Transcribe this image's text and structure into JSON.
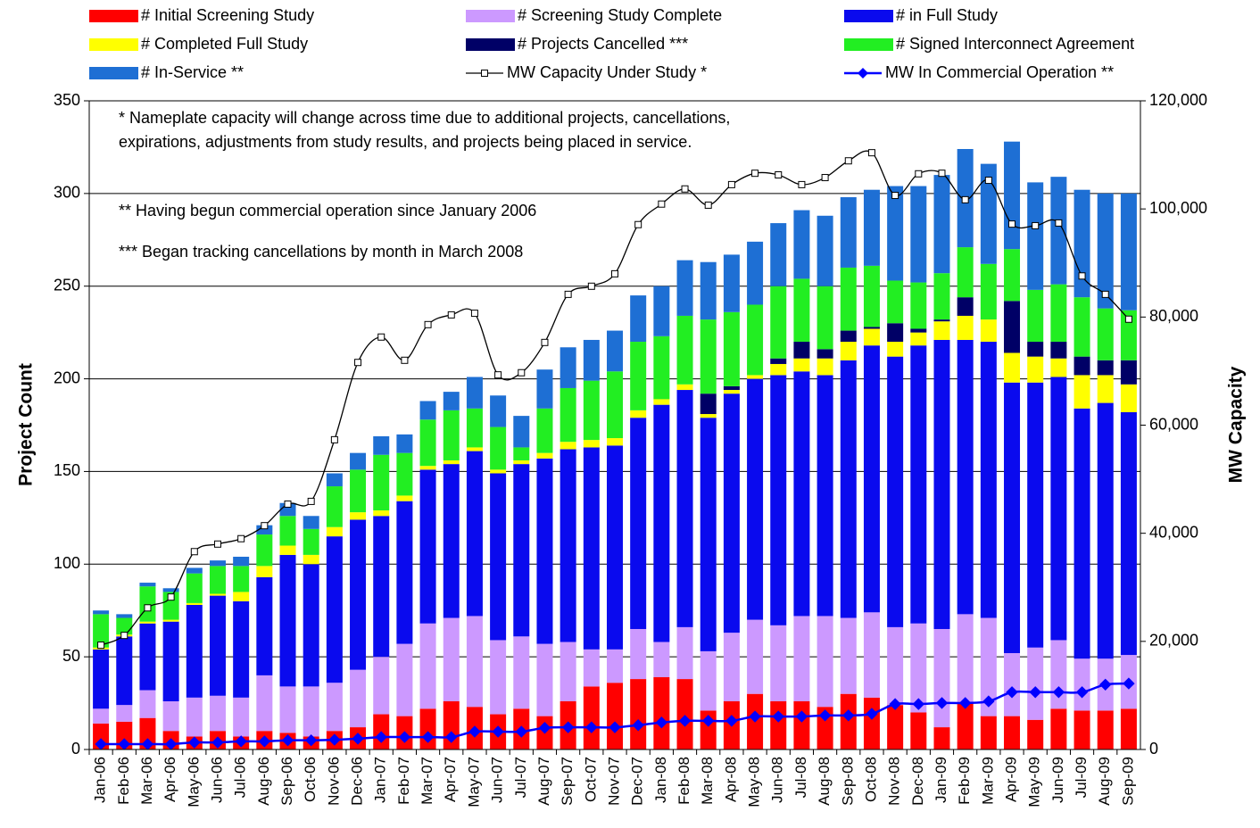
{
  "chart_data": {
    "type": "bar",
    "stacked": true,
    "categories": [
      "Jan-06",
      "Feb-06",
      "Mar-06",
      "Apr-06",
      "May-06",
      "Jun-06",
      "Jul-06",
      "Aug-06",
      "Sep-06",
      "Oct-06",
      "Nov-06",
      "Dec-06",
      "Jan-07",
      "Feb-07",
      "Mar-07",
      "Apr-07",
      "May-07",
      "Jun-07",
      "Jul-07",
      "Aug-07",
      "Sep-07",
      "Oct-07",
      "Nov-07",
      "Dec-07",
      "Jan-08",
      "Feb-08",
      "Mar-08",
      "Apr-08",
      "May-08",
      "Jun-08",
      "Jul-08",
      "Aug-08",
      "Sep-08",
      "Oct-08",
      "Nov-08",
      "Dec-08",
      "Jan-09",
      "Feb-09",
      "Mar-09",
      "Apr-09",
      "May-09",
      "Jun-09",
      "Jul-09",
      "Aug-09",
      "Sep-09"
    ],
    "series": [
      {
        "name": "# Initial Screening Study",
        "color": "#ff0000",
        "values": [
          14,
          15,
          17,
          10,
          7,
          10,
          7,
          10,
          9,
          7,
          10,
          12,
          19,
          18,
          22,
          26,
          23,
          19,
          22,
          18,
          26,
          34,
          36,
          38,
          39,
          38,
          21,
          26,
          30,
          26,
          26,
          23,
          30,
          28,
          24,
          20,
          12,
          25,
          18,
          18,
          16,
          22,
          21,
          21,
          22
        ]
      },
      {
        "name": "# Screening Study Complete",
        "color": "#cc99ff",
        "values": [
          8,
          9,
          15,
          16,
          21,
          19,
          21,
          30,
          25,
          27,
          26,
          31,
          31,
          39,
          46,
          45,
          49,
          40,
          39,
          39,
          32,
          20,
          18,
          27,
          19,
          28,
          32,
          37,
          40,
          41,
          46,
          49,
          41,
          46,
          42,
          48,
          53,
          48,
          53,
          34,
          39,
          37,
          28,
          28,
          29
        ]
      },
      {
        "name": "# in Full Study",
        "color": "#0a0aee",
        "values": [
          32,
          37,
          36,
          43,
          50,
          54,
          52,
          53,
          71,
          66,
          79,
          81,
          76,
          77,
          83,
          83,
          89,
          90,
          93,
          100,
          104,
          109,
          110,
          114,
          128,
          128,
          126,
          129,
          130,
          135,
          132,
          130,
          139,
          144,
          146,
          150,
          156,
          148,
          149,
          146,
          143,
          142,
          135,
          138,
          131
        ]
      },
      {
        "name": "# Completed Full Study",
        "color": "#ffff00",
        "values": [
          1,
          1,
          1,
          1,
          1,
          1,
          5,
          6,
          5,
          5,
          5,
          4,
          3,
          3,
          2,
          2,
          2,
          2,
          2,
          3,
          4,
          4,
          4,
          4,
          3,
          3,
          2,
          2,
          2,
          6,
          7,
          9,
          10,
          9,
          8,
          7,
          10,
          13,
          12,
          16,
          14,
          10,
          18,
          15,
          15
        ]
      },
      {
        "name": "# Projects Cancelled ***",
        "color": "#000066",
        "values": [
          0,
          0,
          0,
          0,
          0,
          0,
          0,
          0,
          0,
          0,
          0,
          0,
          0,
          0,
          0,
          0,
          0,
          0,
          0,
          0,
          0,
          0,
          0,
          0,
          0,
          0,
          11,
          2,
          0,
          3,
          9,
          5,
          6,
          1,
          10,
          2,
          1,
          10,
          0,
          28,
          8,
          9,
          10,
          8,
          13
        ]
      },
      {
        "name": "# Signed Interconnect Agreement",
        "color": "#22ee22",
        "values": [
          18,
          9,
          19,
          15,
          16,
          15,
          14,
          17,
          16,
          14,
          22,
          23,
          30,
          23,
          25,
          27,
          21,
          23,
          7,
          24,
          29,
          32,
          36,
          37,
          34,
          37,
          40,
          40,
          38,
          39,
          34,
          34,
          34,
          33,
          23,
          25,
          25,
          27,
          30,
          28,
          28,
          31,
          32,
          28,
          27
        ]
      },
      {
        "name": "# In-Service **",
        "color": "#1e6fd4",
        "values": [
          2,
          2,
          2,
          2,
          3,
          3,
          5,
          5,
          7,
          7,
          7,
          9,
          10,
          10,
          10,
          10,
          17,
          17,
          17,
          21,
          22,
          22,
          22,
          25,
          27,
          30,
          31,
          31,
          34,
          34,
          37,
          38,
          38,
          41,
          51,
          52,
          53,
          53,
          54,
          58,
          58,
          58,
          58,
          62,
          63
        ]
      },
      {
        "name": "MW Capacity Under Study *",
        "color": "#000000",
        "type": "line",
        "marker": "square",
        "axis": "y2",
        "values": [
          19300,
          21100,
          26200,
          28200,
          36600,
          38000,
          39000,
          41400,
          45400,
          45900,
          57300,
          71600,
          76300,
          72000,
          78600,
          80400,
          80700,
          69300,
          69700,
          75300,
          84200,
          85700,
          88000,
          97100,
          100900,
          103700,
          100700,
          104500,
          106600,
          106300,
          104500,
          105800,
          108900,
          110400,
          102500,
          106500,
          106600,
          101700,
          105300,
          97200,
          96900,
          97400,
          87600,
          84200,
          79600
        ]
      },
      {
        "name": "MW In Commercial Operation **",
        "color": "#0000ff",
        "type": "line",
        "marker": "diamond",
        "axis": "y2",
        "values": [
          1000,
          1000,
          1000,
          1000,
          1300,
          1300,
          1500,
          1500,
          1700,
          1700,
          1800,
          2000,
          2300,
          2300,
          2300,
          2300,
          3300,
          3300,
          3300,
          4000,
          4100,
          4100,
          4100,
          4500,
          5000,
          5300,
          5300,
          5300,
          6100,
          6100,
          6100,
          6300,
          6300,
          6600,
          8400,
          8400,
          8600,
          8600,
          8900,
          10600,
          10600,
          10600,
          10600,
          12000,
          12200
        ]
      }
    ],
    "ylabel": "Project Count",
    "y2label": "MW Capacity",
    "ylim": [
      0,
      350
    ],
    "yticks": [
      0,
      50,
      100,
      150,
      200,
      250,
      300,
      350
    ],
    "y2lim": [
      0,
      120000
    ],
    "y2ticks": [
      0,
      {
        "value": 20000,
        "label": "20,000"
      },
      {
        "value": 40000,
        "label": "40,000"
      },
      {
        "value": 60000,
        "label": "60,000"
      },
      {
        "value": 80000,
        "label": "80,000"
      },
      {
        "value": 100000,
        "label": "100,000"
      },
      {
        "value": 120000,
        "label": "120,000"
      }
    ],
    "grid": true,
    "legend": "top",
    "annotations": [
      "* Nameplate capacity will change across time due to additional projects, cancellations,",
      "expirations, adjustments from study results, and projects being placed in service.",
      "** Having begun commercial operation since January 2006",
      "*** Began tracking cancellations by month in March 2008"
    ]
  }
}
